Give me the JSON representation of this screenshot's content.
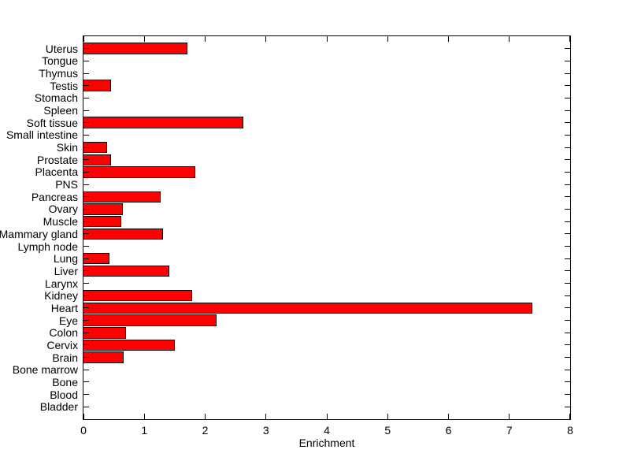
{
  "figure": {
    "background_color": "#ffffff",
    "axis_color": "#000000",
    "text_color": "#000000"
  },
  "chart_data": {
    "type": "bar",
    "orientation": "horizontal",
    "title": "",
    "xlabel": "Enrichment",
    "ylabel": "",
    "grid": false,
    "legend": null,
    "xlim": [
      0,
      8
    ],
    "xticks": [
      0,
      1,
      2,
      3,
      4,
      5,
      6,
      7,
      8
    ],
    "bar_color": "#ff0000",
    "bar_edge_color": "#000000",
    "categories": [
      "Uterus",
      "Tongue",
      "Thymus",
      "Testis",
      "Stomach",
      "Spleen",
      "Soft tissue",
      "Small intestine",
      "Skin",
      "Prostate",
      "Placenta",
      "PNS",
      "Pancreas",
      "Ovary",
      "Muscle",
      "Mammary gland",
      "Lymph node",
      "Lung",
      "Liver",
      "Larynx",
      "Kidney",
      "Heart",
      "Eye",
      "Colon",
      "Cervix",
      "Brain",
      "Bone marrow",
      "Bone",
      "Blood",
      "Bladder"
    ],
    "values": [
      1.7,
      0,
      0,
      0.44,
      0,
      0,
      2.61,
      0,
      0.37,
      0.44,
      1.82,
      0,
      1.25,
      0.64,
      0.61,
      1.3,
      0,
      0.42,
      1.4,
      0,
      1.77,
      7.36,
      2.18,
      0.69,
      1.49,
      0.65,
      0,
      0,
      0,
      0
    ]
  }
}
